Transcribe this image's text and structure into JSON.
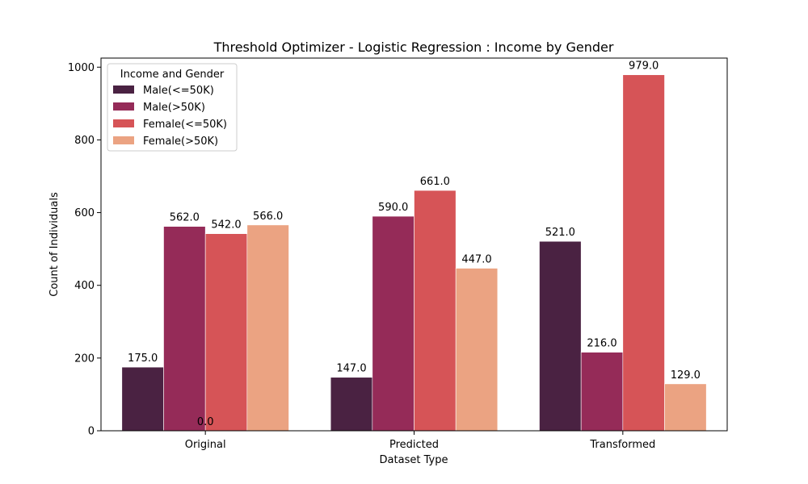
{
  "chart_data": {
    "type": "bar",
    "title": "Threshold Optimizer - Logistic Regression : Income by Gender",
    "xlabel": "Dataset Type",
    "ylabel": "Count of Individuals",
    "categories": [
      "Original",
      "Predicted",
      "Transformed"
    ],
    "ylim": [
      0,
      1025
    ],
    "yticks": [
      0,
      200,
      400,
      600,
      800,
      1000
    ],
    "legend": {
      "title": "Income and Gender",
      "placement": "top-left"
    },
    "grid": false,
    "series": [
      {
        "name": "Male(<=50K)",
        "color": "#4a2242",
        "values": [
          175,
          147,
          521
        ]
      },
      {
        "name": "Male(>50K)",
        "color": "#952b58",
        "values": [
          562,
          590,
          216
        ]
      },
      {
        "name": "Female(<=50K)",
        "color": "#d65457",
        "values": [
          542,
          661,
          979
        ]
      },
      {
        "name": "Female(>50K)",
        "color": "#eba382",
        "values": [
          566,
          447,
          129
        ]
      }
    ],
    "data_labels": [
      [
        "175.0",
        "562.0",
        "542.0",
        "566.0"
      ],
      [
        "147.0",
        "590.0",
        "661.0",
        "447.0"
      ],
      [
        "521.0",
        "216.0",
        "979.0",
        "129.0"
      ]
    ],
    "annotations": [
      {
        "category": "Original",
        "text": "0.0"
      }
    ]
  }
}
